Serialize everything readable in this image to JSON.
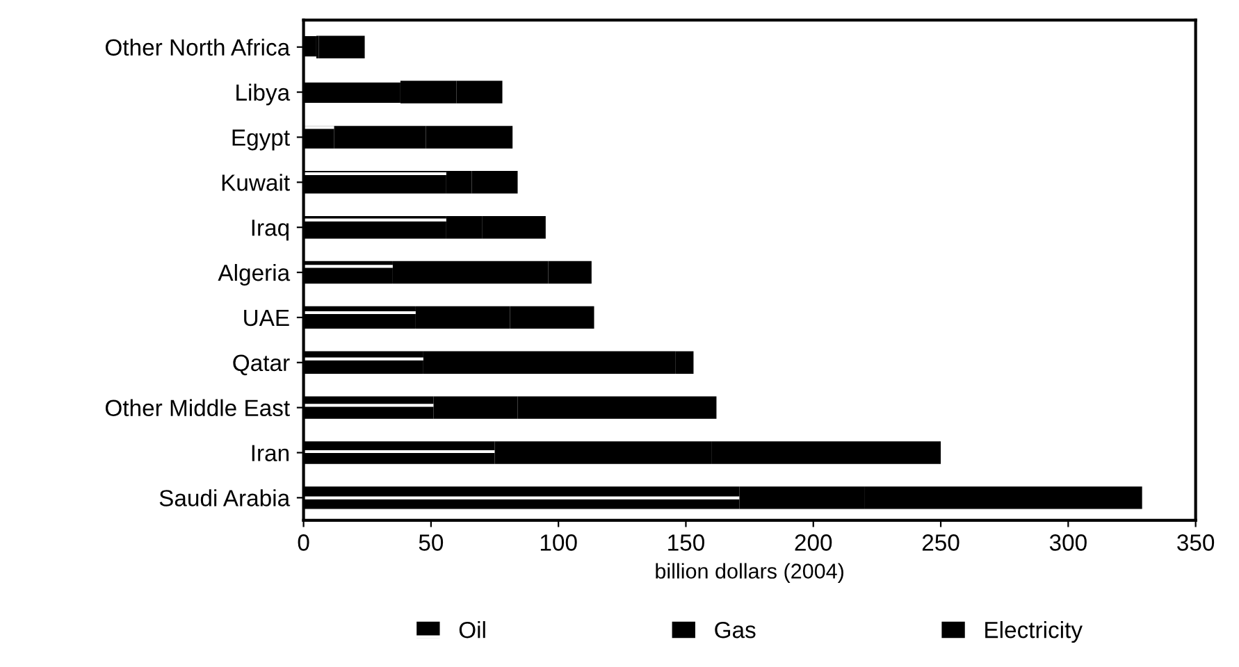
{
  "chart_data": {
    "type": "bar",
    "orientation": "horizontal",
    "stacked": true,
    "xlabel": "billion dollars (2004)",
    "categories": [
      "Other North Africa",
      "Libya",
      "Egypt",
      "Kuwait",
      "Iraq",
      "Algeria",
      "UAE",
      "Qatar",
      "Other Middle East",
      "Iran",
      "Saudi Arabia"
    ],
    "series": [
      {
        "name": "Oil",
        "color": "#000000",
        "values": [
          5,
          38,
          12,
          56,
          56,
          35,
          44,
          47,
          51,
          75,
          171
        ]
      },
      {
        "name": "Gas",
        "color": "#000000",
        "values": [
          1,
          22,
          36,
          10,
          14,
          61,
          37,
          99,
          33,
          85,
          49
        ]
      },
      {
        "name": "Electricity",
        "color": "#000000",
        "values": [
          18,
          18,
          34,
          18,
          25,
          17,
          33,
          7,
          78,
          90,
          109
        ]
      }
    ],
    "xlim": [
      0,
      350
    ],
    "xticks": [
      0,
      50,
      100,
      150,
      200,
      250,
      300,
      350
    ],
    "grid": false,
    "legend": "bottom"
  }
}
